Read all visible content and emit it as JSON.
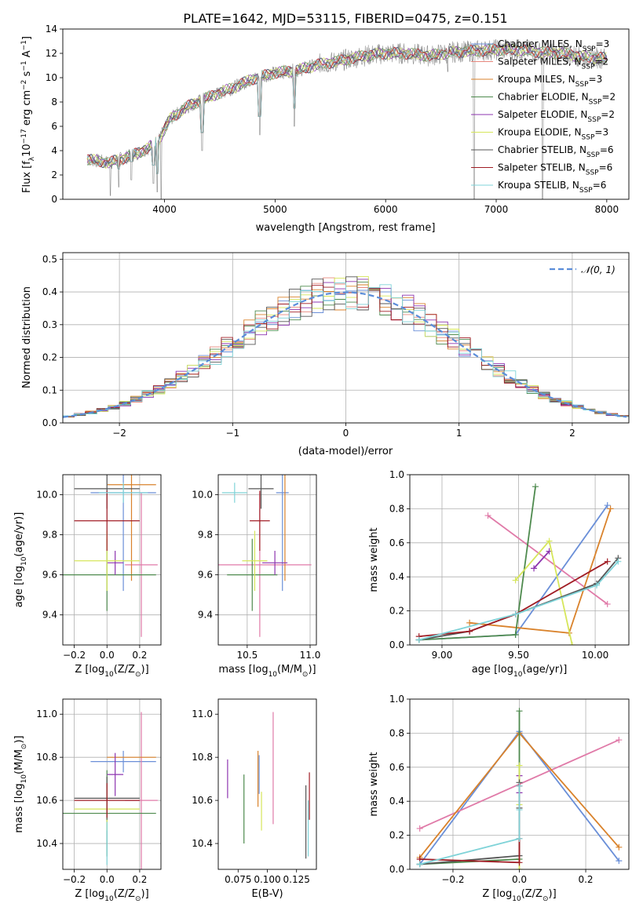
{
  "figure": {
    "title": "PLATE=1642, MJD=53115, FIBERID=0475, z=0.151"
  },
  "chart_data": [
    {
      "id": "spectrum",
      "type": "line",
      "xlabel": "wavelength [Angstrom, rest frame]",
      "ylabel_parts": [
        "Flux [f",
        "λ",
        "10",
        "−17",
        " erg cm",
        "−2",
        " s",
        "−1",
        " A",
        "−1",
        "]"
      ],
      "xlim": [
        3080,
        8200
      ],
      "ylim": [
        0,
        14
      ],
      "xticks": [
        4000,
        5000,
        6000,
        7000,
        8000
      ],
      "yticks": [
        0,
        2,
        4,
        6,
        8,
        10,
        12,
        14
      ],
      "grid": false,
      "legend_position": "top-right",
      "anchor_x": [
        3300,
        3500,
        3700,
        3850,
        3950,
        4050,
        4200,
        4400,
        4600,
        4800,
        5000,
        5200,
        5400,
        5600,
        5800,
        6000,
        6200,
        6400,
        6600,
        6800,
        7000,
        7200,
        7400,
        7600,
        7800,
        8000
      ],
      "anchor_y": [
        3.3,
        3.0,
        3.6,
        4.2,
        4.9,
        6.6,
        7.6,
        8.4,
        9.1,
        9.9,
        10.4,
        10.6,
        11.1,
        11.4,
        11.8,
        12.0,
        12.0,
        11.8,
        12.1,
        12.2,
        12.3,
        12.3,
        12.1,
        12.0,
        11.7,
        11.6
      ],
      "drops": [
        {
          "x": 3510,
          "y": 0.3
        },
        {
          "x": 3585,
          "y": 1.0
        },
        {
          "x": 3700,
          "y": 1.6
        },
        {
          "x": 3900,
          "y": 1.3
        },
        {
          "x": 3934,
          "y": 0.6
        },
        {
          "x": 3970,
          "y": 0.0
        },
        {
          "x": 4340,
          "y": 4.0
        },
        {
          "x": 4861,
          "y": 5.3
        },
        {
          "x": 5175,
          "y": 6.0
        },
        {
          "x": 6563,
          "y": 10.5
        },
        {
          "x": 6800,
          "y": 0.0
        },
        {
          "x": 7420,
          "y": 0.0
        }
      ],
      "series": [
        {
          "name_parts": [
            "Chabrier MILES, N",
            "SSP",
            "=3"
          ],
          "color": "#6a8fd8"
        },
        {
          "name_parts": [
            "Salpeter MILES, N",
            "SSP",
            "=2"
          ],
          "color": "#e8887e"
        },
        {
          "name_parts": [
            "Kroupa MILES, N",
            "SSP",
            "=3"
          ],
          "color": "#d9822b"
        },
        {
          "name_parts": [
            "Chabrier ELODIE, N",
            "SSP",
            "=2"
          ],
          "color": "#4e8a4e"
        },
        {
          "name_parts": [
            "Salpeter ELODIE, N",
            "SSP",
            "=2"
          ],
          "color": "#8e35b0"
        },
        {
          "name_parts": [
            "Kroupa ELODIE, N",
            "SSP",
            "=3"
          ],
          "color": "#d6e65a"
        },
        {
          "name_parts": [
            "Chabrier STELIB, N",
            "SSP",
            "=6"
          ],
          "color": "#555555"
        },
        {
          "name_parts": [
            "Salpeter STELIB, N",
            "SSP",
            "=6"
          ],
          "color": "#a01c24"
        },
        {
          "name_parts": [
            "Kroupa STELIB, N",
            "SSP",
            "=6"
          ],
          "color": "#7fd3d8"
        }
      ]
    },
    {
      "id": "residuals",
      "type": "step",
      "xlabel": "(data-model)/error",
      "ylabel": "Normed distribution",
      "xlim": [
        -2.5,
        2.5
      ],
      "ylim": [
        0,
        0.52
      ],
      "xticks": [
        -2,
        -1,
        0,
        1,
        2
      ],
      "yticks": [
        0.0,
        0.1,
        0.2,
        0.3,
        0.4,
        0.5
      ],
      "grid": true,
      "legend_position": "top-right",
      "legend_label": "𝒩(0, 1)",
      "normal_color": "#5b8dd9",
      "bin_width": 0.1
    },
    {
      "id": "age_vs_Z",
      "type": "errorbar",
      "xlabel_parts": [
        "Z [log",
        "10",
        "(Z/Z",
        "⊙",
        ")]"
      ],
      "ylabel_parts": [
        "age  [log",
        "10",
        "(age/yr)]"
      ],
      "xlim": [
        -0.27,
        0.33
      ],
      "ylim": [
        9.25,
        10.1
      ],
      "xticks": [
        -0.2,
        0.0,
        0.2
      ],
      "yticks": [
        9.4,
        9.6,
        9.8,
        10.0
      ],
      "grid": true,
      "points": [
        {
          "c": "#6a8fd8",
          "x": 0.1,
          "xe": 0.2,
          "y": 10.01,
          "ye": 0.49
        },
        {
          "c": "#e07aa8",
          "x": 0.21,
          "xe": 0.1,
          "y": 9.65,
          "ye": 0.36
        },
        {
          "c": "#d9822b",
          "x": 0.15,
          "xe": 0.15,
          "y": 10.05,
          "ye": 0.48
        },
        {
          "c": "#4e8a4e",
          "x": 0.0,
          "xe": 0.3,
          "y": 9.6,
          "ye": 0.18
        },
        {
          "c": "#8e35b0",
          "x": 0.05,
          "xe": 0.05,
          "y": 9.66,
          "ye": 0.06
        },
        {
          "c": "#d6e65a",
          "x": 0.0,
          "xe": 0.2,
          "y": 9.67,
          "ye": 0.15
        },
        {
          "c": "#555555",
          "x": 0.0,
          "xe": 0.2,
          "y": 10.03,
          "ye": 0.1
        },
        {
          "c": "#a01c24",
          "x": 0.0,
          "xe": 0.2,
          "y": 9.87,
          "ye": 0.15
        },
        {
          "c": "#7fd3d8",
          "x": 0.1,
          "xe": 0.15,
          "y": 10.01,
          "ye": 0.05
        }
      ]
    },
    {
      "id": "age_vs_mass",
      "type": "errorbar",
      "xlabel_parts": [
        "mass [log",
        "10",
        "(M/M",
        "⊙",
        ")]"
      ],
      "xlim": [
        10.27,
        11.05
      ],
      "ylim": [
        9.25,
        10.1
      ],
      "xticks": [
        10.5,
        11.0
      ],
      "yticks": [
        9.4,
        9.6,
        9.8,
        10.0
      ],
      "grid": true,
      "points": [
        {
          "c": "#6a8fd8",
          "x": 10.78,
          "xe": 0.05,
          "y": 10.01,
          "ye": 0.49
        },
        {
          "c": "#e07aa8",
          "x": 10.6,
          "xe": 0.41,
          "y": 9.65,
          "ye": 0.36
        },
        {
          "c": "#d9822b",
          "x": 10.8,
          "xe": 0.0,
          "y": 10.05,
          "ye": 0.48
        },
        {
          "c": "#4e8a4e",
          "x": 10.54,
          "xe": 0.2,
          "y": 9.6,
          "ye": 0.18
        },
        {
          "c": "#8e35b0",
          "x": 10.72,
          "xe": 0.1,
          "y": 9.66,
          "ye": 0.06
        },
        {
          "c": "#d6e65a",
          "x": 10.56,
          "xe": 0.1,
          "y": 9.67,
          "ye": 0.15
        },
        {
          "c": "#555555",
          "x": 10.61,
          "xe": 0.1,
          "y": 10.03,
          "ye": 0.1
        },
        {
          "c": "#a01c24",
          "x": 10.6,
          "xe": 0.08,
          "y": 9.87,
          "ye": 0.15
        },
        {
          "c": "#7fd3d8",
          "x": 10.4,
          "xe": 0.1,
          "y": 10.01,
          "ye": 0.05
        }
      ]
    },
    {
      "id": "weight_vs_age",
      "type": "line",
      "xlabel_parts": [
        "age  [log",
        "10",
        "(age/yr)]"
      ],
      "ylabel": "mass weight",
      "xlim": [
        8.79,
        10.22
      ],
      "ylim": [
        0,
        1.0
      ],
      "xticks": [
        9.0,
        9.5,
        10.0
      ],
      "yticks": [
        0.0,
        0.2,
        0.4,
        0.6,
        0.8,
        1.0
      ],
      "grid": true,
      "series": [
        {
          "c": "#6a8fd8",
          "x": [
            8.85,
            9.48,
            10.08
          ],
          "y": [
            0.03,
            0.06,
            0.82
          ]
        },
        {
          "c": "#e07aa8",
          "x": [
            9.3,
            10.08
          ],
          "y": [
            0.76,
            0.24
          ]
        },
        {
          "c": "#d9822b",
          "x": [
            9.18,
            9.83,
            10.1
          ],
          "y": [
            0.13,
            0.07,
            0.8
          ]
        },
        {
          "c": "#4e8a4e",
          "x": [
            8.85,
            9.48,
            9.61
          ],
          "y": [
            0.03,
            0.06,
            0.93
          ]
        },
        {
          "c": "#8e35b0",
          "x": [
            9.6,
            9.7
          ],
          "y": [
            0.45,
            0.55
          ]
        },
        {
          "c": "#d6e65a",
          "x": [
            9.48,
            9.7,
            9.85
          ],
          "y": [
            0.38,
            0.61,
            0.0
          ]
        },
        {
          "c": "#555555",
          "x": [
            8.85,
            9.18,
            9.48,
            10.01,
            10.15
          ],
          "y": [
            0.03,
            0.08,
            0.18,
            0.36,
            0.51
          ]
        },
        {
          "c": "#a01c24",
          "x": [
            8.85,
            9.18,
            9.48,
            10.08
          ],
          "y": [
            0.05,
            0.08,
            0.18,
            0.49
          ]
        },
        {
          "c": "#7fd3d8",
          "x": [
            8.85,
            9.48,
            10.01,
            10.15
          ],
          "y": [
            0.03,
            0.18,
            0.35,
            0.49
          ]
        }
      ]
    },
    {
      "id": "mass_vs_Z",
      "type": "errorbar",
      "xlabel_parts": [
        "Z [log",
        "10",
        "(Z/Z",
        "⊙",
        ")]"
      ],
      "ylabel_parts": [
        "mass [log",
        "10",
        "(M/M",
        "⊙",
        ")]"
      ],
      "xlim": [
        -0.27,
        0.33
      ],
      "ylim": [
        10.28,
        11.07
      ],
      "xticks": [
        -0.2,
        0.0,
        0.2
      ],
      "yticks": [
        10.4,
        10.6,
        10.8,
        11.0
      ],
      "grid": true,
      "points": [
        {
          "c": "#6a8fd8",
          "x": 0.1,
          "xe": 0.2,
          "y": 10.78,
          "ye": 0.05
        },
        {
          "c": "#e07aa8",
          "x": 0.21,
          "xe": 0.1,
          "y": 10.6,
          "ye": 0.41
        },
        {
          "c": "#d9822b",
          "x": 0.15,
          "xe": 0.15,
          "y": 10.8,
          "ye": 0.0
        },
        {
          "c": "#4e8a4e",
          "x": 0.0,
          "xe": 0.3,
          "y": 10.54,
          "ye": 0.2
        },
        {
          "c": "#8e35b0",
          "x": 0.05,
          "xe": 0.05,
          "y": 10.72,
          "ye": 0.1
        },
        {
          "c": "#d6e65a",
          "x": 0.0,
          "xe": 0.2,
          "y": 10.56,
          "ye": 0.1
        },
        {
          "c": "#555555",
          "x": 0.0,
          "xe": 0.2,
          "y": 10.61,
          "ye": 0.1
        },
        {
          "c": "#a01c24",
          "x": 0.0,
          "xe": 0.2,
          "y": 10.6,
          "ye": 0.08
        },
        {
          "c": "#7fd3d8",
          "x": 0.0,
          "xe": 0.0,
          "y": 10.4,
          "ye": 0.1
        }
      ]
    },
    {
      "id": "mass_vs_ebv",
      "type": "errorbar",
      "xlabel": "E(B-V)",
      "xlim": [
        0.058,
        0.142
      ],
      "ylim": [
        10.28,
        11.07
      ],
      "xticks": [
        0.075,
        0.1,
        0.125
      ],
      "xtick_labels": [
        "0.075",
        "0.100",
        "0.125"
      ],
      "yticks": [
        10.4,
        10.6,
        10.8,
        11.0
      ],
      "grid": false,
      "points": [
        {
          "c": "#8e35b0",
          "x": 0.066,
          "y": 10.7,
          "ye": 0.09
        },
        {
          "c": "#4e8a4e",
          "x": 0.08,
          "y": 10.56,
          "ye": 0.16
        },
        {
          "c": "#d9822b",
          "x": 0.092,
          "y": 10.7,
          "ye": 0.13
        },
        {
          "c": "#6a8fd8",
          "x": 0.093,
          "y": 10.72,
          "ye": 0.09
        },
        {
          "c": "#d6e65a",
          "x": 0.095,
          "y": 10.55,
          "ye": 0.09
        },
        {
          "c": "#e07aa8",
          "x": 0.105,
          "y": 10.75,
          "ye": 0.26
        },
        {
          "c": "#555555",
          "x": 0.133,
          "y": 10.5,
          "ye": 0.17
        },
        {
          "c": "#a01c24",
          "x": 0.136,
          "y": 10.62,
          "ye": 0.11
        },
        {
          "c": "#7fd3d8",
          "x": 0.135,
          "y": 10.47,
          "ye": 0.13
        }
      ]
    },
    {
      "id": "weight_vs_Z",
      "type": "line",
      "xlabel_parts": [
        "Z [log",
        "10",
        "(Z/Z",
        "⊙",
        ")]"
      ],
      "ylabel": "mass weight",
      "xlim": [
        -0.33,
        0.33
      ],
      "ylim": [
        0,
        1.0
      ],
      "xticks": [
        -0.2,
        0.0,
        0.2
      ],
      "yticks": [
        0.0,
        0.2,
        0.4,
        0.6,
        0.8,
        1.0
      ],
      "grid": true,
      "series": [
        {
          "c": "#6a8fd8",
          "x": [
            -0.3,
            0.0,
            0.3
          ],
          "y": [
            0.03,
            0.81,
            0.05
          ]
        },
        {
          "c": "#e07aa8",
          "x": [
            -0.3,
            0.3
          ],
          "y": [
            0.24,
            0.76
          ]
        },
        {
          "c": "#d9822b",
          "x": [
            -0.3,
            0.0,
            0.3
          ],
          "y": [
            0.07,
            0.8,
            0.13
          ]
        },
        {
          "c": "#4e8a4e",
          "x": [
            0.0,
            0.0,
            -0.3
          ],
          "y": [
            0.93,
            0.06,
            0.03
          ]
        },
        {
          "c": "#8e35b0",
          "x": [
            0.0,
            0.0
          ],
          "y": [
            0.45,
            0.55
          ]
        },
        {
          "c": "#d6e65a",
          "x": [
            0.0,
            0.0,
            0.0
          ],
          "y": [
            0.38,
            0.61,
            0.0
          ]
        },
        {
          "c": "#555555",
          "x": [
            -0.3,
            0.0,
            0.0,
            0.0,
            0.0
          ],
          "y": [
            0.03,
            0.08,
            0.18,
            0.36,
            0.51
          ]
        },
        {
          "c": "#a01c24",
          "x": [
            -0.3,
            0.0,
            0.0,
            0.0
          ],
          "y": [
            0.06,
            0.04,
            0.18,
            0.49
          ]
        },
        {
          "c": "#7fd3d8",
          "x": [
            -0.3,
            0.0,
            0.0,
            0.0
          ],
          "y": [
            0.03,
            0.18,
            0.35,
            0.49
          ]
        }
      ]
    }
  ]
}
